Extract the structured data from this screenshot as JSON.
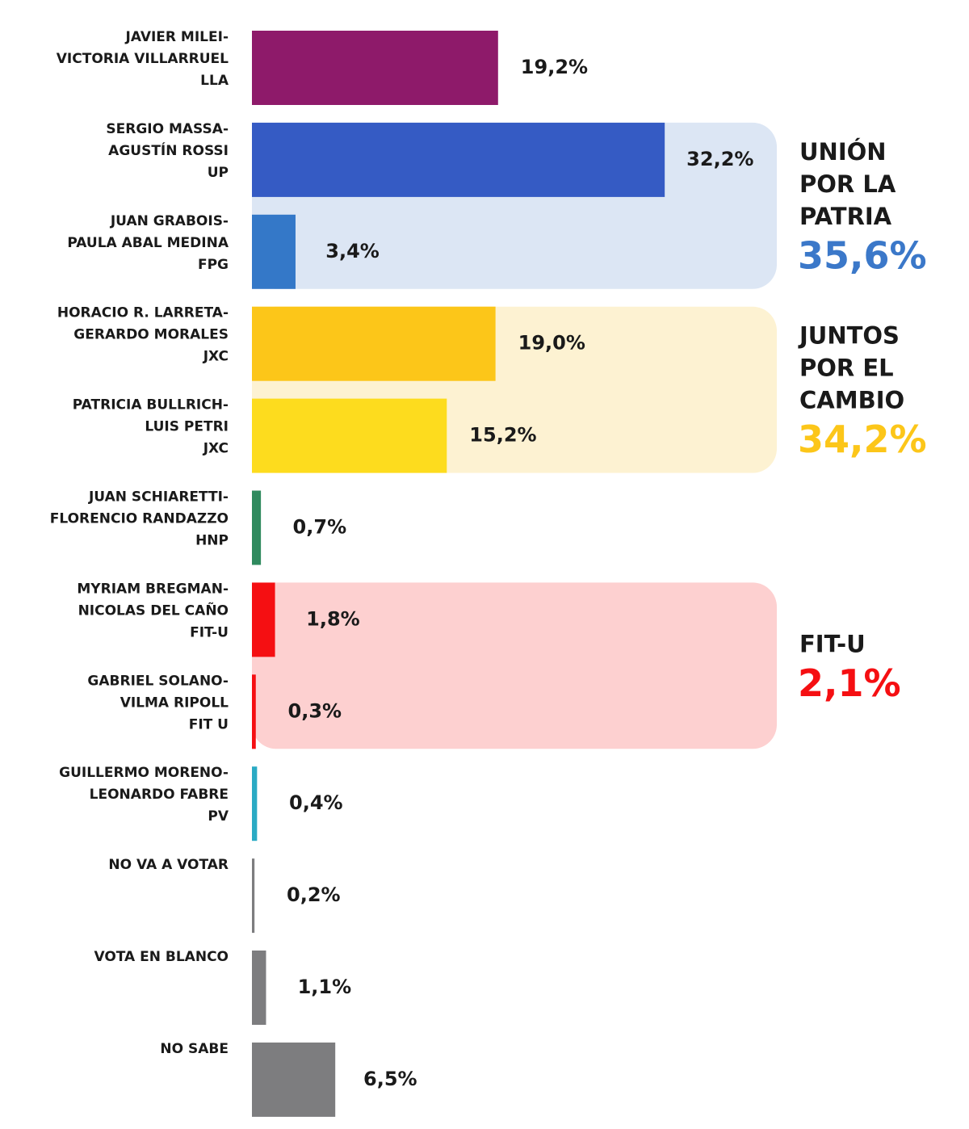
{
  "chart_data": {
    "type": "bar",
    "categories": [
      [
        "JAVIER MILEI-",
        "VICTORIA VILLARRUEL",
        "LLA"
      ],
      [
        "SERGIO MASSA-",
        "AGUSTÍN ROSSI",
        "UP"
      ],
      [
        "JUAN GRABOIS-",
        "PAULA ABAL MEDINA",
        "FPG"
      ],
      [
        "HORACIO R. LARRETA-",
        "GERARDO MORALES",
        "JXC"
      ],
      [
        "PATRICIA BULLRICH-",
        "LUIS PETRI",
        "JXC"
      ],
      [
        "JUAN SCHIARETTI-",
        "FLORENCIO RANDAZZO",
        "HNP"
      ],
      [
        "MYRIAM BREGMAN-",
        "NICOLAS DEL CAÑO",
        "FIT-U"
      ],
      [
        "GABRIEL SOLANO-",
        "VILMA RIPOLL",
        "FIT U"
      ],
      [
        "GUILLERMO MORENO-",
        "LEONARDO FABRE",
        "PV"
      ],
      [
        "NO VA A VOTAR"
      ],
      [
        "VOTA EN BLANCO"
      ],
      [
        "NO SABE"
      ]
    ],
    "values": [
      19.2,
      32.2,
      3.4,
      19.0,
      15.2,
      0.7,
      1.8,
      0.3,
      0.4,
      0.2,
      1.1,
      6.5
    ],
    "value_labels": [
      "19,2%",
      "32,2%",
      "3,4%",
      "19,0%",
      "15,2%",
      "0,7%",
      "1,8%",
      "0,3%",
      "0,4%",
      "0,2%",
      "1,1%",
      "6,5%"
    ],
    "colors": [
      "#8e1a6a",
      "#355bc4",
      "#3478c8",
      "#fcc619",
      "#fddc1e",
      "#2f8a5e",
      "#f50f12",
      "#f50f12",
      "#2aaac4",
      "#7d7d7f",
      "#7d7d7f",
      "#7d7d7f"
    ],
    "xlim": [
      0,
      40
    ],
    "groups": [
      {
        "name": [
          "UNIÓN",
          "POR LA",
          "PATRIA"
        ],
        "value": 35.6,
        "value_label": "35,6%",
        "color": "#3b78c9",
        "background": "#dce6f4",
        "bars": [
          1,
          2
        ]
      },
      {
        "name": [
          "JUNTOS",
          "POR EL",
          "CAMBIO"
        ],
        "value": 34.2,
        "value_label": "34,2%",
        "color": "#fcc619",
        "background": "#fdf2d2",
        "bars": [
          3,
          4
        ]
      },
      {
        "name": [
          "FIT-U"
        ],
        "value": 2.1,
        "value_label": "2,1%",
        "color": "#f50f12",
        "background": "#fdd0d0",
        "bars": [
          6,
          7
        ]
      }
    ]
  }
}
